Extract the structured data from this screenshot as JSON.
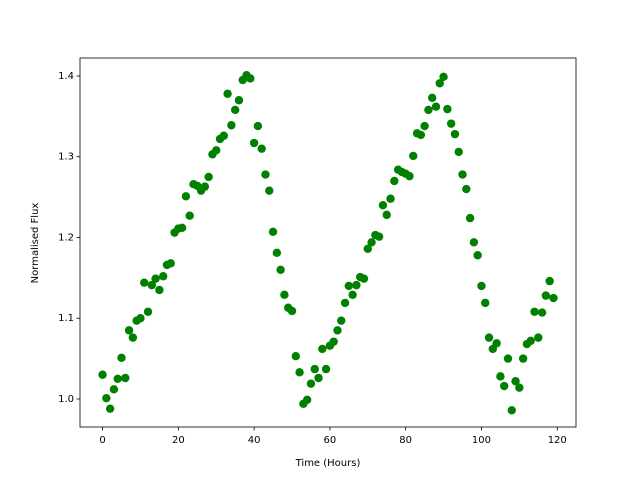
{
  "chart_data": {
    "type": "scatter",
    "x_label": "Time (Hours)",
    "y_label": "Normalised Flux",
    "color": "#008000",
    "grid": false,
    "xlim": [
      -5.95,
      124.95
    ],
    "ylim": [
      0.9653,
      1.4223
    ],
    "xticks": [
      0,
      20,
      40,
      60,
      80,
      100,
      120
    ],
    "yticks": [
      {
        "value": 1.0,
        "label": "1.0"
      },
      1.1,
      1.2,
      1.3,
      1.4
    ],
    "x": [
      0,
      1,
      2,
      3,
      4,
      5,
      6,
      7,
      8,
      9,
      10,
      11,
      12,
      13,
      14,
      15,
      16,
      17,
      18,
      19,
      20,
      21,
      22,
      23,
      24,
      25,
      26,
      27,
      28,
      29,
      30,
      31,
      32,
      33,
      34,
      35,
      36,
      37,
      38,
      39,
      40,
      41,
      42,
      43,
      44,
      45,
      46,
      47,
      48,
      49,
      50,
      51,
      52,
      53,
      54,
      55,
      56,
      57,
      58,
      59,
      60,
      61,
      62,
      63,
      64,
      65,
      66,
      67,
      68,
      69,
      70,
      71,
      72,
      73,
      74,
      75,
      76,
      77,
      78,
      79,
      80,
      81,
      82,
      83,
      84,
      85,
      86,
      87,
      88,
      89,
      90,
      91,
      92,
      93,
      94,
      95,
      96,
      97,
      98,
      99,
      100,
      101,
      102,
      103,
      104,
      105,
      106,
      107,
      108,
      109,
      110,
      111,
      112,
      113,
      114,
      115,
      116,
      117,
      118,
      119
    ],
    "values": [
      1.03,
      1.001,
      0.988,
      1.012,
      1.025,
      1.051,
      1.026,
      1.085,
      1.076,
      1.097,
      1.1,
      1.144,
      1.108,
      1.141,
      1.149,
      1.135,
      1.152,
      1.166,
      1.168,
      1.206,
      1.211,
      1.212,
      1.251,
      1.227,
      1.266,
      1.264,
      1.258,
      1.263,
      1.275,
      1.303,
      1.308,
      1.322,
      1.326,
      1.378,
      1.339,
      1.358,
      1.37,
      1.395,
      1.401,
      1.397,
      1.317,
      1.338,
      1.31,
      1.278,
      1.258,
      1.207,
      1.181,
      1.16,
      1.129,
      1.113,
      1.109,
      1.053,
      1.033,
      0.994,
      0.999,
      1.019,
      1.037,
      1.026,
      1.062,
      1.037,
      1.066,
      1.071,
      1.085,
      1.097,
      1.119,
      1.14,
      1.129,
      1.141,
      1.151,
      1.149,
      1.186,
      1.194,
      1.203,
      1.201,
      1.24,
      1.228,
      1.248,
      1.27,
      1.284,
      1.281,
      1.279,
      1.276,
      1.301,
      1.329,
      1.327,
      1.338,
      1.358,
      1.373,
      1.362,
      1.391,
      1.399,
      1.359,
      1.341,
      1.328,
      1.306,
      1.278,
      1.26,
      1.224,
      1.194,
      1.178,
      1.14,
      1.119,
      1.076,
      1.062,
      1.069,
      1.028,
      1.016,
      1.05,
      0.986,
      1.022,
      1.014,
      1.05,
      1.068,
      1.072,
      1.108,
      1.076,
      1.107,
      1.128,
      1.146,
      1.125
    ]
  }
}
